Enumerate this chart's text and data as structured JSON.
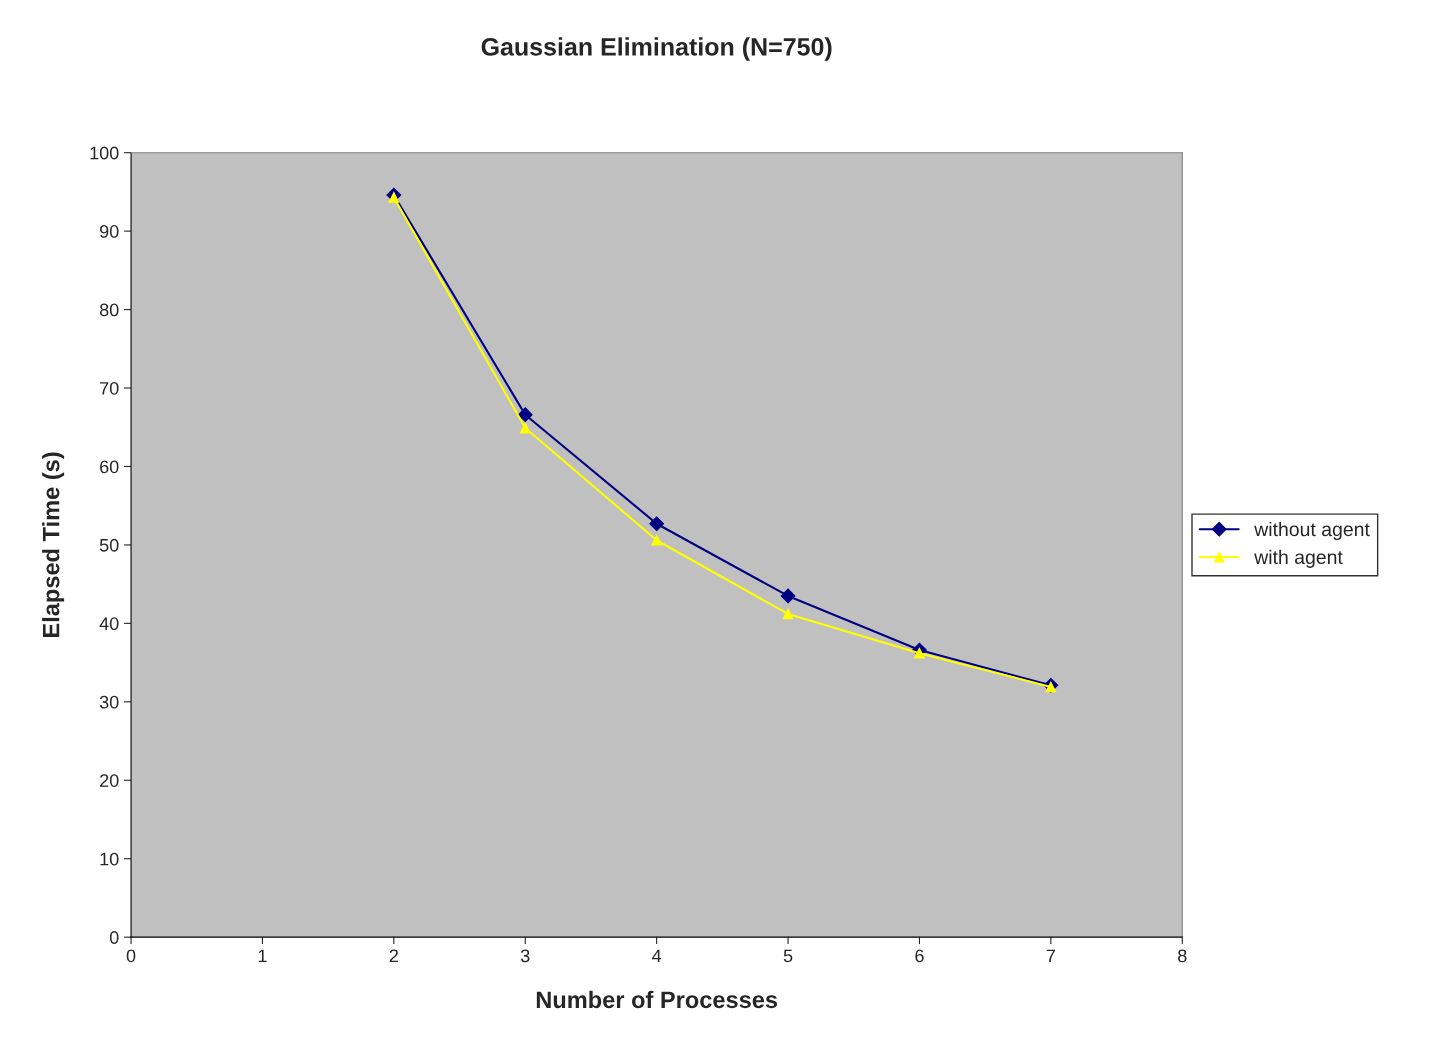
{
  "chart_data": {
    "type": "line",
    "title": "Gaussian Elimination (N=750)",
    "xlabel": "Number of Processes",
    "ylabel": "Elapsed Time (s)",
    "x": [
      2,
      3,
      4,
      5,
      6,
      7
    ],
    "series": [
      {
        "name": "without agent",
        "color": "#000080",
        "marker": "diamond",
        "values": [
          94.6,
          66.6,
          52.7,
          43.5,
          36.6,
          32.1
        ]
      },
      {
        "name": "with agent",
        "color": "#ffff00",
        "marker": "triangle",
        "values": [
          94.3,
          64.9,
          50.6,
          41.2,
          36.2,
          31.9
        ]
      }
    ],
    "xlim": [
      0,
      8
    ],
    "xticks": [
      0,
      1,
      2,
      3,
      4,
      5,
      6,
      7,
      8
    ],
    "ylim": [
      0,
      100
    ],
    "yticks": [
      0,
      10,
      20,
      30,
      40,
      50,
      60,
      70,
      80,
      90,
      100
    ],
    "grid": false,
    "legend": "right",
    "line_style": "solid"
  }
}
